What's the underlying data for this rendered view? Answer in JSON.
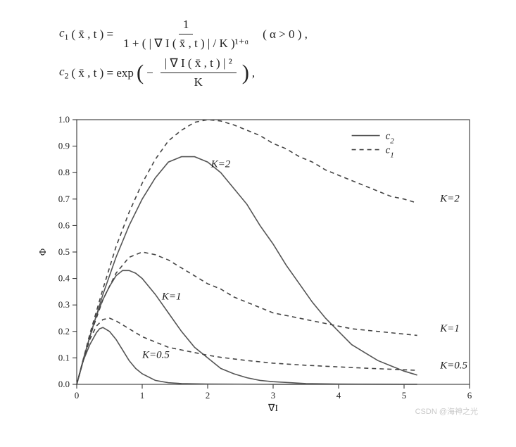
{
  "equations": {
    "eq1_lhs_sub": "1",
    "eq1_lhs_rest": "( x̄ , t ) =",
    "eq1_num": "1",
    "eq1_den": "1 + ( | ∇ I ( x̄ , t ) | / K )¹⁺ᵅ",
    "eq1_cond": "( α > 0 ) ,",
    "eq2_lhs_sub": "2",
    "eq2_lhs_rest": "( x̄ , t ) = exp",
    "eq2_num": "| ∇ I ( x̄ , t ) | ²",
    "eq2_den": "K",
    "eq2_tail": ","
  },
  "chart": {
    "type": "line",
    "background_color": "#ffffff",
    "axis_color": "#222222",
    "solid_color": "#555555",
    "dash_color": "#444444",
    "xlim": [
      0,
      6
    ],
    "ylim": [
      0,
      1.0
    ],
    "xticks": [
      0,
      1,
      2,
      3,
      4,
      5,
      6
    ],
    "yticks": [
      0,
      0.1,
      0.2,
      0.3,
      0.4,
      0.5,
      0.6,
      0.7,
      0.8,
      0.9,
      1.0
    ],
    "xlabel": "∇I",
    "ylabel": "Φ",
    "label_fontsize": 14,
    "tick_fontsize": 13,
    "annot_fontsize": 15,
    "line_width": 1.6,
    "dash_pattern": "6 5",
    "legend": {
      "x": 4.2,
      "y_top": 0.94,
      "items": [
        {
          "style": "solid",
          "label": "c",
          "sub": "2"
        },
        {
          "style": "dash",
          "label": "c",
          "sub": "1"
        }
      ]
    },
    "annotations": [
      {
        "text": "K=2",
        "gx": 2.05,
        "gy": 0.82
      },
      {
        "text": "K=2",
        "gx": 5.55,
        "gy": 0.69
      },
      {
        "text": "K=1",
        "gx": 1.3,
        "gy": 0.32
      },
      {
        "text": "K=1",
        "gx": 5.55,
        "gy": 0.2
      },
      {
        "text": "K=0.5",
        "gx": 1.0,
        "gy": 0.1
      },
      {
        "text": "K=0.5",
        "gx": 5.55,
        "gy": 0.06
      }
    ],
    "series": [
      {
        "name": "c2_K2",
        "style": "solid",
        "data": [
          [
            0,
            0
          ],
          [
            0.2,
            0.18
          ],
          [
            0.4,
            0.34
          ],
          [
            0.6,
            0.48
          ],
          [
            0.8,
            0.6
          ],
          [
            1.0,
            0.7
          ],
          [
            1.2,
            0.78
          ],
          [
            1.4,
            0.84
          ],
          [
            1.6,
            0.86
          ],
          [
            1.8,
            0.86
          ],
          [
            2.0,
            0.84
          ],
          [
            2.2,
            0.8
          ],
          [
            2.4,
            0.74
          ],
          [
            2.6,
            0.68
          ],
          [
            2.8,
            0.6
          ],
          [
            3.0,
            0.53
          ],
          [
            3.2,
            0.45
          ],
          [
            3.4,
            0.38
          ],
          [
            3.6,
            0.31
          ],
          [
            3.8,
            0.25
          ],
          [
            4.0,
            0.2
          ],
          [
            4.2,
            0.15
          ],
          [
            4.4,
            0.12
          ],
          [
            4.6,
            0.09
          ],
          [
            4.8,
            0.07
          ],
          [
            5.0,
            0.05
          ],
          [
            5.2,
            0.035
          ]
        ]
      },
      {
        "name": "c1_K2",
        "style": "dash",
        "data": [
          [
            0,
            0
          ],
          [
            0.2,
            0.19
          ],
          [
            0.4,
            0.36
          ],
          [
            0.6,
            0.52
          ],
          [
            0.8,
            0.65
          ],
          [
            1.0,
            0.76
          ],
          [
            1.2,
            0.85
          ],
          [
            1.4,
            0.92
          ],
          [
            1.6,
            0.96
          ],
          [
            1.8,
            0.99
          ],
          [
            2.0,
            1.0
          ],
          [
            2.2,
            0.995
          ],
          [
            2.4,
            0.98
          ],
          [
            2.6,
            0.96
          ],
          [
            2.8,
            0.94
          ],
          [
            3.0,
            0.91
          ],
          [
            3.2,
            0.89
          ],
          [
            3.4,
            0.86
          ],
          [
            3.6,
            0.84
          ],
          [
            3.8,
            0.81
          ],
          [
            4.0,
            0.79
          ],
          [
            4.2,
            0.77
          ],
          [
            4.4,
            0.75
          ],
          [
            4.6,
            0.73
          ],
          [
            4.8,
            0.71
          ],
          [
            5.0,
            0.7
          ],
          [
            5.2,
            0.685
          ]
        ]
      },
      {
        "name": "c2_K1",
        "style": "solid",
        "data": [
          [
            0,
            0
          ],
          [
            0.1,
            0.095
          ],
          [
            0.2,
            0.18
          ],
          [
            0.3,
            0.26
          ],
          [
            0.4,
            0.32
          ],
          [
            0.5,
            0.37
          ],
          [
            0.6,
            0.41
          ],
          [
            0.7,
            0.43
          ],
          [
            0.8,
            0.43
          ],
          [
            0.9,
            0.42
          ],
          [
            1.0,
            0.4
          ],
          [
            1.2,
            0.34
          ],
          [
            1.4,
            0.27
          ],
          [
            1.6,
            0.2
          ],
          [
            1.8,
            0.14
          ],
          [
            2.0,
            0.1
          ],
          [
            2.2,
            0.06
          ],
          [
            2.4,
            0.04
          ],
          [
            2.6,
            0.025
          ],
          [
            2.8,
            0.015
          ],
          [
            3.0,
            0.01
          ],
          [
            3.5,
            0.003
          ],
          [
            4.0,
            0.001
          ],
          [
            5.0,
            0.0005
          ],
          [
            5.2,
            0.0004
          ]
        ]
      },
      {
        "name": "c1_K1",
        "style": "dash",
        "data": [
          [
            0,
            0
          ],
          [
            0.2,
            0.18
          ],
          [
            0.4,
            0.32
          ],
          [
            0.6,
            0.42
          ],
          [
            0.8,
            0.48
          ],
          [
            1.0,
            0.5
          ],
          [
            1.2,
            0.49
          ],
          [
            1.4,
            0.47
          ],
          [
            1.6,
            0.44
          ],
          [
            1.8,
            0.41
          ],
          [
            2.0,
            0.38
          ],
          [
            2.2,
            0.36
          ],
          [
            2.4,
            0.33
          ],
          [
            2.6,
            0.31
          ],
          [
            2.8,
            0.29
          ],
          [
            3.0,
            0.27
          ],
          [
            3.2,
            0.26
          ],
          [
            3.4,
            0.25
          ],
          [
            3.6,
            0.24
          ],
          [
            3.8,
            0.23
          ],
          [
            4.0,
            0.22
          ],
          [
            4.2,
            0.21
          ],
          [
            4.4,
            0.205
          ],
          [
            4.6,
            0.2
          ],
          [
            4.8,
            0.195
          ],
          [
            5.0,
            0.19
          ],
          [
            5.2,
            0.185
          ]
        ]
      },
      {
        "name": "c2_K05",
        "style": "solid",
        "data": [
          [
            0,
            0
          ],
          [
            0.1,
            0.09
          ],
          [
            0.2,
            0.15
          ],
          [
            0.3,
            0.195
          ],
          [
            0.35,
            0.21
          ],
          [
            0.4,
            0.215
          ],
          [
            0.5,
            0.2
          ],
          [
            0.6,
            0.17
          ],
          [
            0.7,
            0.13
          ],
          [
            0.8,
            0.09
          ],
          [
            0.9,
            0.06
          ],
          [
            1.0,
            0.04
          ],
          [
            1.2,
            0.015
          ],
          [
            1.4,
            0.006
          ],
          [
            1.6,
            0.003
          ],
          [
            2.0,
            0.001
          ],
          [
            3.0,
            0.0003
          ],
          [
            5.0,
            0.0001
          ],
          [
            5.2,
            0.0001
          ]
        ]
      },
      {
        "name": "c1_K05",
        "style": "dash",
        "data": [
          [
            0,
            0
          ],
          [
            0.1,
            0.09
          ],
          [
            0.2,
            0.17
          ],
          [
            0.3,
            0.22
          ],
          [
            0.4,
            0.245
          ],
          [
            0.5,
            0.25
          ],
          [
            0.6,
            0.24
          ],
          [
            0.7,
            0.225
          ],
          [
            0.8,
            0.21
          ],
          [
            1.0,
            0.18
          ],
          [
            1.2,
            0.16
          ],
          [
            1.4,
            0.14
          ],
          [
            1.6,
            0.13
          ],
          [
            1.8,
            0.12
          ],
          [
            2.0,
            0.11
          ],
          [
            2.2,
            0.102
          ],
          [
            2.4,
            0.096
          ],
          [
            2.6,
            0.09
          ],
          [
            2.8,
            0.085
          ],
          [
            3.0,
            0.08
          ],
          [
            3.5,
            0.072
          ],
          [
            4.0,
            0.066
          ],
          [
            4.5,
            0.06
          ],
          [
            5.0,
            0.055
          ],
          [
            5.2,
            0.053
          ]
        ]
      }
    ],
    "watermark": "CSDN @海神之光"
  }
}
